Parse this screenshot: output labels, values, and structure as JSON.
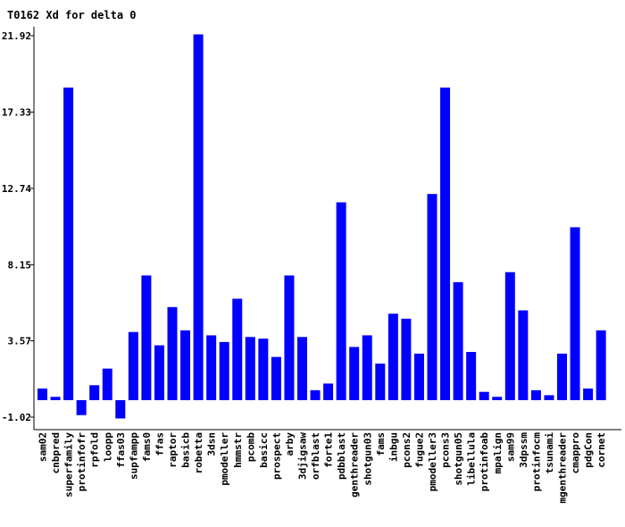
{
  "chart_data": {
    "type": "bar",
    "title": "T0162 Xd for delta 0",
    "xlabel": "",
    "ylabel": "",
    "ylim": [
      -1.02,
      21.92
    ],
    "yticks": [
      "-1.02",
      "3.57",
      "8.15",
      "12.74",
      "17.33",
      "21.92"
    ],
    "bar_color": "#0000ff",
    "grid": false,
    "categories": [
      "sam02",
      "cnbpred",
      "superfamily",
      "protinfofr",
      "rpfold",
      "loopp",
      "ffas03",
      "supfampp",
      "fams0",
      "ffas",
      "raptor",
      "basicb",
      "robetta",
      "3dsn",
      "pmodeller",
      "hmmstr",
      "pcomb",
      "basicc",
      "prospect",
      "arby",
      "3djigsaw",
      "orfblast",
      "forte1",
      "pdbblast",
      "genthreader",
      "shotgun03",
      "fams",
      "inbgu",
      "pcons2",
      "fugue2",
      "pmodeller3",
      "pcons3",
      "shotgun05",
      "libellula",
      "protinfoab",
      "mpalign",
      "sam99",
      "3dpssm",
      "protinfocm",
      "tsunami",
      "mgenthreader",
      "cmappro",
      "pdgCon",
      "cornet"
    ],
    "values": [
      0.7,
      0.2,
      18.8,
      -0.9,
      0.9,
      1.9,
      -1.1,
      4.1,
      7.5,
      3.3,
      5.6,
      4.2,
      22.0,
      3.9,
      3.5,
      6.1,
      3.8,
      3.7,
      2.6,
      7.5,
      3.8,
      0.6,
      1.0,
      11.9,
      3.2,
      3.9,
      2.2,
      5.2,
      4.9,
      2.8,
      12.4,
      18.8,
      7.1,
      2.9,
      0.5,
      0.2,
      7.7,
      5.4,
      0.6,
      0.3,
      2.8,
      10.4,
      0.7,
      4.2
    ]
  }
}
